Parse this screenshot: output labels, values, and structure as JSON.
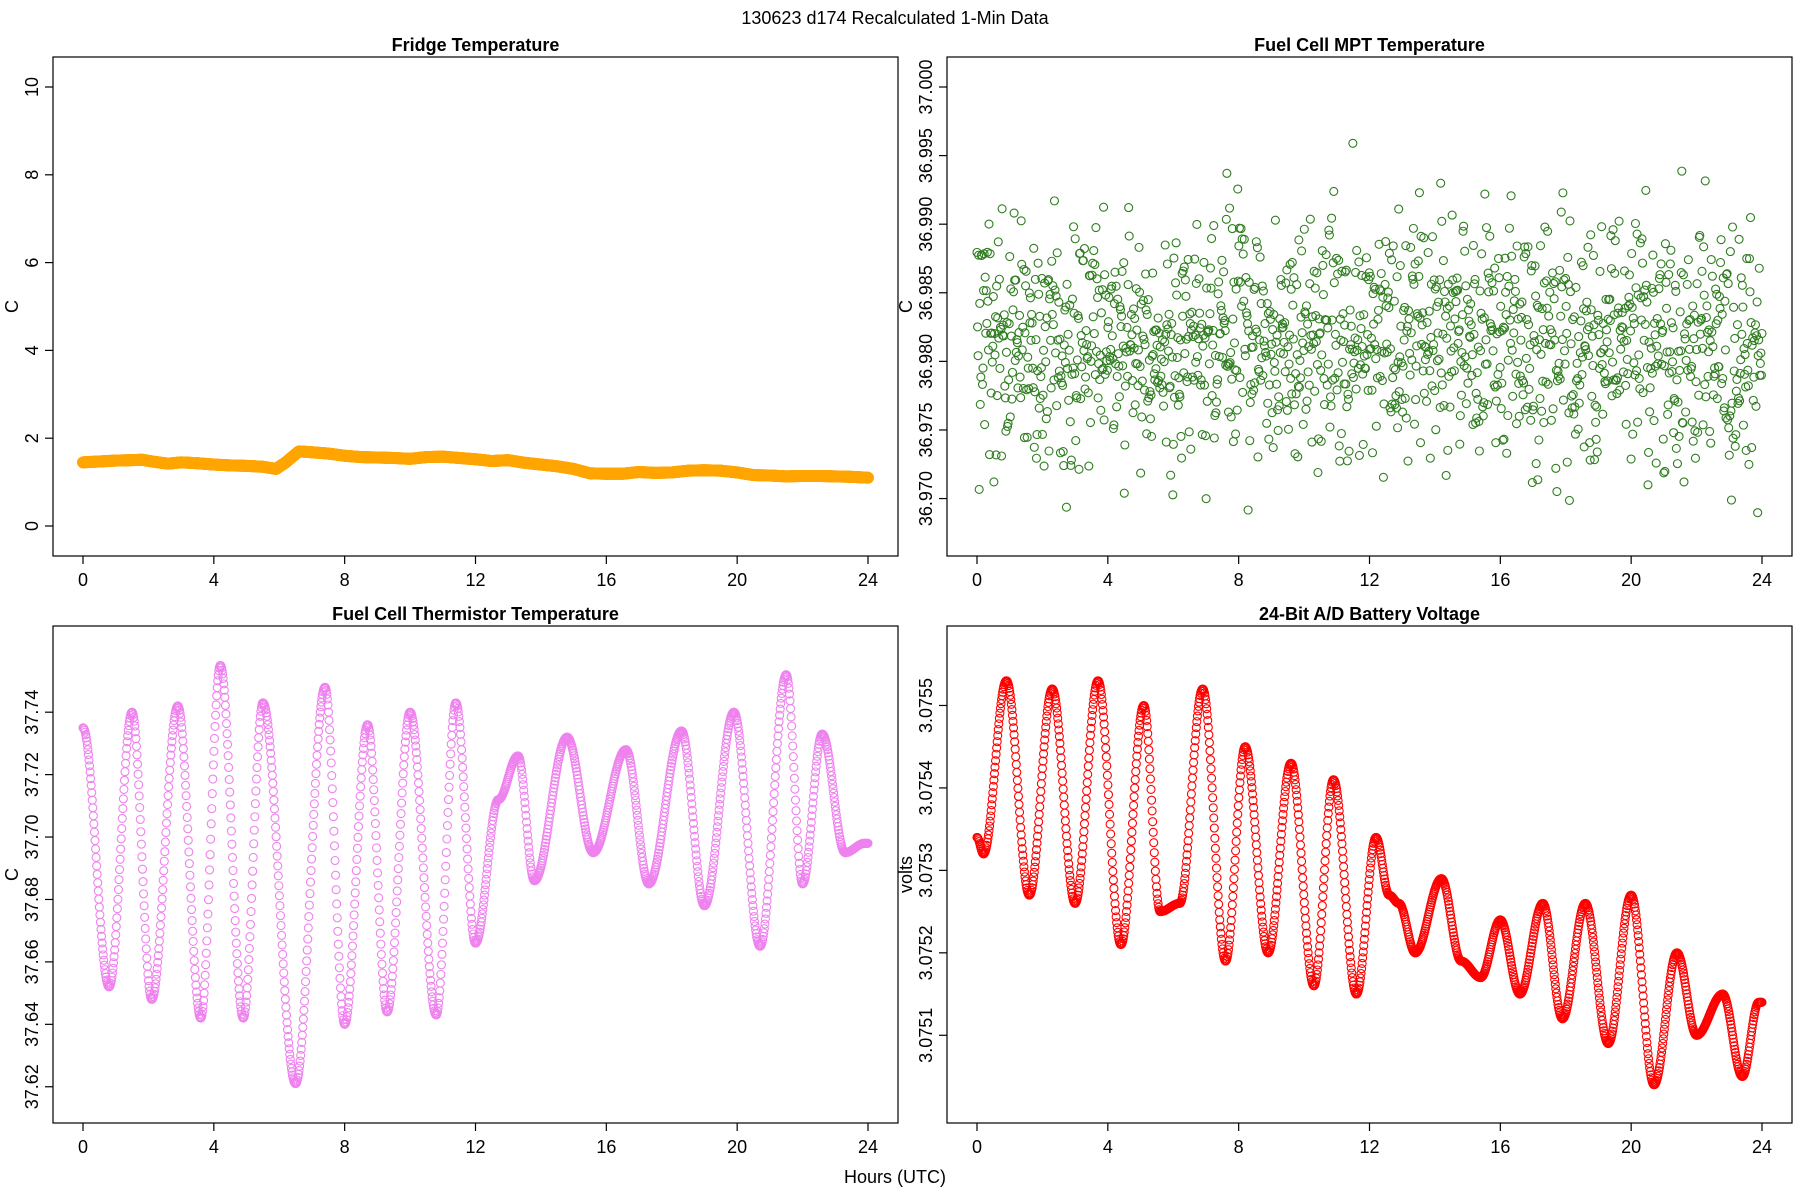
{
  "figure": {
    "title": "130623   d174   Recalculated 1-Min Data",
    "common_xlabel": "Hours (UTC)"
  },
  "chart_data": [
    {
      "type": "scatter",
      "title": "Fridge Temperature",
      "ylabel": "C",
      "color": "#FFA500",
      "marker": "filled-dense",
      "xlim": [
        0,
        24
      ],
      "ylim": [
        0,
        10
      ],
      "xticks": [
        0,
        4,
        8,
        12,
        16,
        20,
        24
      ],
      "yticks": [
        0,
        2,
        4,
        6,
        8,
        10
      ],
      "ytick_labels": [
        "0",
        "2",
        "4",
        "6",
        "8",
        "10"
      ],
      "series": [
        {
          "name": "Fridge Temperature",
          "x": [
            0,
            0.5,
            1,
            1.5,
            1.8,
            2.2,
            2.6,
            3,
            3.5,
            4,
            4.5,
            5,
            5.5,
            5.9,
            6.2,
            6.6,
            7,
            7.5,
            8,
            8.5,
            9,
            9.5,
            10,
            10.5,
            11,
            11.5,
            12,
            12.5,
            13,
            13.5,
            14,
            14.5,
            15,
            15.5,
            16,
            16.5,
            17,
            17.5,
            18,
            18.5,
            19,
            19.5,
            20,
            20.5,
            21,
            21.5,
            22,
            22.5,
            23,
            23.5,
            24
          ],
          "y": [
            1.45,
            1.47,
            1.49,
            1.5,
            1.51,
            1.46,
            1.42,
            1.45,
            1.43,
            1.4,
            1.38,
            1.37,
            1.35,
            1.3,
            1.45,
            1.7,
            1.68,
            1.65,
            1.6,
            1.57,
            1.56,
            1.55,
            1.53,
            1.57,
            1.58,
            1.55,
            1.52,
            1.48,
            1.5,
            1.44,
            1.4,
            1.36,
            1.3,
            1.2,
            1.19,
            1.19,
            1.23,
            1.21,
            1.22,
            1.26,
            1.27,
            1.26,
            1.22,
            1.16,
            1.15,
            1.13,
            1.14,
            1.14,
            1.13,
            1.12,
            1.1
          ]
        }
      ]
    },
    {
      "type": "scatter",
      "title": "Fuel Cell MPT Temperature",
      "ylabel": "C",
      "color": "#2E7D1F",
      "marker": "open-circle",
      "xlim": [
        0,
        24
      ],
      "ylim": [
        36.968,
        37.0
      ],
      "xticks": [
        0,
        4,
        8,
        12,
        16,
        20,
        24
      ],
      "yticks": [
        36.97,
        36.975,
        36.98,
        36.985,
        36.99,
        36.995,
        37.0
      ],
      "ytick_labels": [
        "36.970",
        "36.975",
        "36.980",
        "36.985",
        "36.990",
        "36.995",
        "37.000"
      ],
      "series": [
        {
          "name": "Fuel Cell MPT Temperature",
          "model": "random-noise",
          "mean": 36.9815,
          "sd": 0.0045,
          "n_points": 1440
        }
      ]
    },
    {
      "type": "scatter",
      "title": "Fuel Cell Thermistor Temperature",
      "ylabel": "C",
      "color": "#EE82EE",
      "marker": "open-circle",
      "xlim": [
        0,
        24
      ],
      "ylim": [
        37.618,
        37.758
      ],
      "xticks": [
        0,
        4,
        8,
        12,
        16,
        20,
        24
      ],
      "yticks": [
        37.62,
        37.64,
        37.66,
        37.68,
        37.7,
        37.72,
        37.74
      ],
      "ytick_labels": [
        "37.62",
        "37.64",
        "37.66",
        "37.68",
        "37.70",
        "37.72",
        "37.74"
      ],
      "series": [
        {
          "name": "Fuel Cell Thermistor Temperature",
          "model": "oscillation",
          "n_points": 1440,
          "extremes_x": [
            0,
            0.8,
            1.5,
            2.1,
            2.9,
            3.6,
            4.2,
            4.9,
            5.5,
            6.5,
            7.4,
            8,
            8.7,
            9.3,
            10,
            10.8,
            11.4,
            12,
            12.7,
            13.3,
            13.8,
            14.8,
            15.6,
            16.6,
            17.3,
            18.3,
            19,
            19.9,
            20.7,
            21.5,
            22,
            22.6,
            23.3,
            23.9
          ],
          "extremes_y": [
            37.735,
            37.652,
            37.74,
            37.648,
            37.742,
            37.642,
            37.755,
            37.642,
            37.743,
            37.621,
            37.748,
            37.64,
            37.736,
            37.644,
            37.74,
            37.643,
            37.743,
            37.666,
            37.712,
            37.726,
            37.686,
            37.732,
            37.695,
            37.728,
            37.685,
            37.734,
            37.678,
            37.74,
            37.665,
            37.752,
            37.685,
            37.733,
            37.695,
            37.698
          ]
        }
      ]
    },
    {
      "type": "scatter",
      "title": "24-Bit A/D Battery Voltage",
      "ylabel": "volts",
      "color": "#FF0000",
      "marker": "open-circle",
      "xlim": [
        0,
        24
      ],
      "ylim": [
        3.07503,
        3.07556
      ],
      "xticks": [
        0,
        4,
        8,
        12,
        16,
        20,
        24
      ],
      "yticks": [
        3.0751,
        3.0752,
        3.0753,
        3.0754,
        3.0755
      ],
      "ytick_labels": [
        "3.0751",
        "3.0752",
        "3.0753",
        "3.0754",
        "3.0755"
      ],
      "series": [
        {
          "name": "24-Bit A/D Battery Voltage",
          "model": "oscillation",
          "n_points": 1440,
          "extremes_x": [
            0,
            0.2,
            0.9,
            1.6,
            2.3,
            3.0,
            3.7,
            4.4,
            5.1,
            5.6,
            6.2,
            6.9,
            7.6,
            8.2,
            8.9,
            9.6,
            10.3,
            10.9,
            11.6,
            12.2,
            12.6,
            12.9,
            13.4,
            14.2,
            14.8,
            15.4,
            16.0,
            16.6,
            17.3,
            17.9,
            18.6,
            19.3,
            20.0,
            20.7,
            21.4,
            22.0,
            22.8,
            23.4,
            23.9
          ],
          "extremes_y": [
            3.07534,
            3.07532,
            3.07553,
            3.07527,
            3.07552,
            3.07526,
            3.07553,
            3.07521,
            3.0755,
            3.07525,
            3.07526,
            3.07552,
            3.07519,
            3.07545,
            3.0752,
            3.07543,
            3.07516,
            3.07541,
            3.07515,
            3.07534,
            3.07527,
            3.07526,
            3.0752,
            3.07529,
            3.07519,
            3.07517,
            3.07524,
            3.07515,
            3.07526,
            3.07512,
            3.07526,
            3.07509,
            3.07527,
            3.07504,
            3.0752,
            3.0751,
            3.07515,
            3.07505,
            3.07514
          ]
        }
      ]
    }
  ]
}
